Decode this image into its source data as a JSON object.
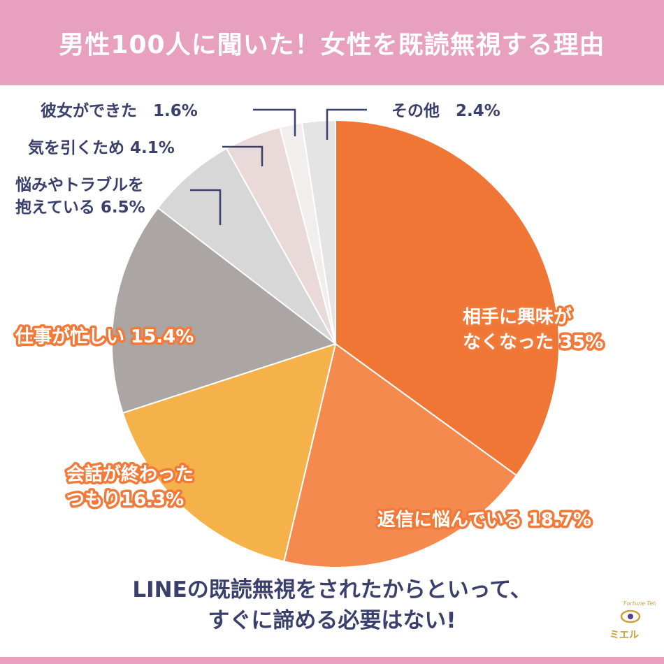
{
  "header": {
    "title": "男性100人に聞いた！女性を既読無視する理由"
  },
  "chart_data": {
    "type": "pie",
    "title": "男性100人に聞いた！女性を既読無視する理由",
    "slices": [
      {
        "label": "相手に興味がなくなった",
        "value": 35.0,
        "label_lines": [
          "相手に興味が",
          "なくなった 35%"
        ],
        "color": "#f07636"
      },
      {
        "label": "返信に悩んでいる",
        "value": 18.7,
        "label_lines": [
          "返信に悩んでいる 18.7%"
        ],
        "color": "#f58a4e"
      },
      {
        "label": "会話が終わったつもり",
        "value": 16.3,
        "label_lines": [
          "会話が終わった",
          "つもり16.3%"
        ],
        "color": "#f5b24a"
      },
      {
        "label": "仕事が忙しい",
        "value": 15.4,
        "label_lines": [
          "仕事が忙しい 15.4%"
        ],
        "color": "#aba6a4"
      },
      {
        "label": "悩みやトラブルを抱えている",
        "value": 6.5,
        "label_lines": [
          "悩みやトラブルを",
          "抱えている 6.5%"
        ],
        "color": "#d7d7d7"
      },
      {
        "label": "気を引くため",
        "value": 4.1,
        "label_lines": [
          "気を引くため 4.1%"
        ],
        "color": "#e9d9d9"
      },
      {
        "label": "彼女ができた",
        "value": 1.6,
        "label_lines": [
          "彼女ができた　1.6%"
        ],
        "color": "#f2eeee"
      },
      {
        "label": "その他",
        "value": 2.4,
        "label_lines": [
          "その他　2.4%"
        ],
        "color": "#e4e4e4"
      }
    ]
  },
  "footer": {
    "line1": "LINEの既読無視をされたからといって、",
    "line2": "すぐに諦める必要はない!"
  },
  "logo": {
    "script": "Fortune Teller",
    "name": "ミエル"
  }
}
